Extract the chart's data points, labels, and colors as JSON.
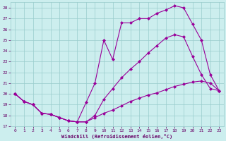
{
  "xlabel": "Windchill (Refroidissement éolien,°C)",
  "xlim": [
    -0.5,
    23.5
  ],
  "ylim": [
    17,
    28.5
  ],
  "yticks": [
    17,
    18,
    19,
    20,
    21,
    22,
    23,
    24,
    25,
    26,
    27,
    28
  ],
  "xticks": [
    0,
    1,
    2,
    3,
    4,
    5,
    6,
    7,
    8,
    9,
    10,
    11,
    12,
    13,
    14,
    15,
    16,
    17,
    18,
    19,
    20,
    21,
    22,
    23
  ],
  "line_color": "#990099",
  "bg_color": "#cceeee",
  "grid_color": "#99cccc",
  "line1_x": [
    0,
    1,
    2,
    3,
    4,
    5,
    6,
    7,
    8,
    9,
    10,
    11,
    12,
    13,
    14,
    15,
    16,
    17,
    18,
    19,
    20,
    21,
    22,
    23
  ],
  "line1_y": [
    20.0,
    19.3,
    19.0,
    18.2,
    18.1,
    17.8,
    17.5,
    17.4,
    19.2,
    21.0,
    25.0,
    23.2,
    26.6,
    26.6,
    27.0,
    27.0,
    27.5,
    27.8,
    28.2,
    28.0,
    26.5,
    25.0,
    21.8,
    20.3
  ],
  "line2_x": [
    0,
    1,
    2,
    3,
    4,
    5,
    6,
    7,
    8,
    9,
    10,
    11,
    12,
    13,
    14,
    15,
    16,
    17,
    18,
    19,
    20,
    21,
    22,
    23
  ],
  "line2_y": [
    20.0,
    19.3,
    19.0,
    18.2,
    18.1,
    17.8,
    17.5,
    17.4,
    17.4,
    18.0,
    19.5,
    20.5,
    21.5,
    22.3,
    23.0,
    23.8,
    24.5,
    25.2,
    25.5,
    25.3,
    23.5,
    21.8,
    20.5,
    20.3
  ],
  "line3_x": [
    0,
    1,
    2,
    3,
    4,
    5,
    6,
    7,
    8,
    9,
    10,
    11,
    12,
    13,
    14,
    15,
    16,
    17,
    18,
    19,
    20,
    21,
    22,
    23
  ],
  "line3_y": [
    20.0,
    19.3,
    19.0,
    18.2,
    18.1,
    17.8,
    17.5,
    17.4,
    17.4,
    17.8,
    18.2,
    18.5,
    18.9,
    19.3,
    19.6,
    19.9,
    20.1,
    20.4,
    20.7,
    20.9,
    21.1,
    21.2,
    21.0,
    20.3
  ],
  "marker": "D",
  "markersize": 2.0,
  "linewidth": 0.8
}
